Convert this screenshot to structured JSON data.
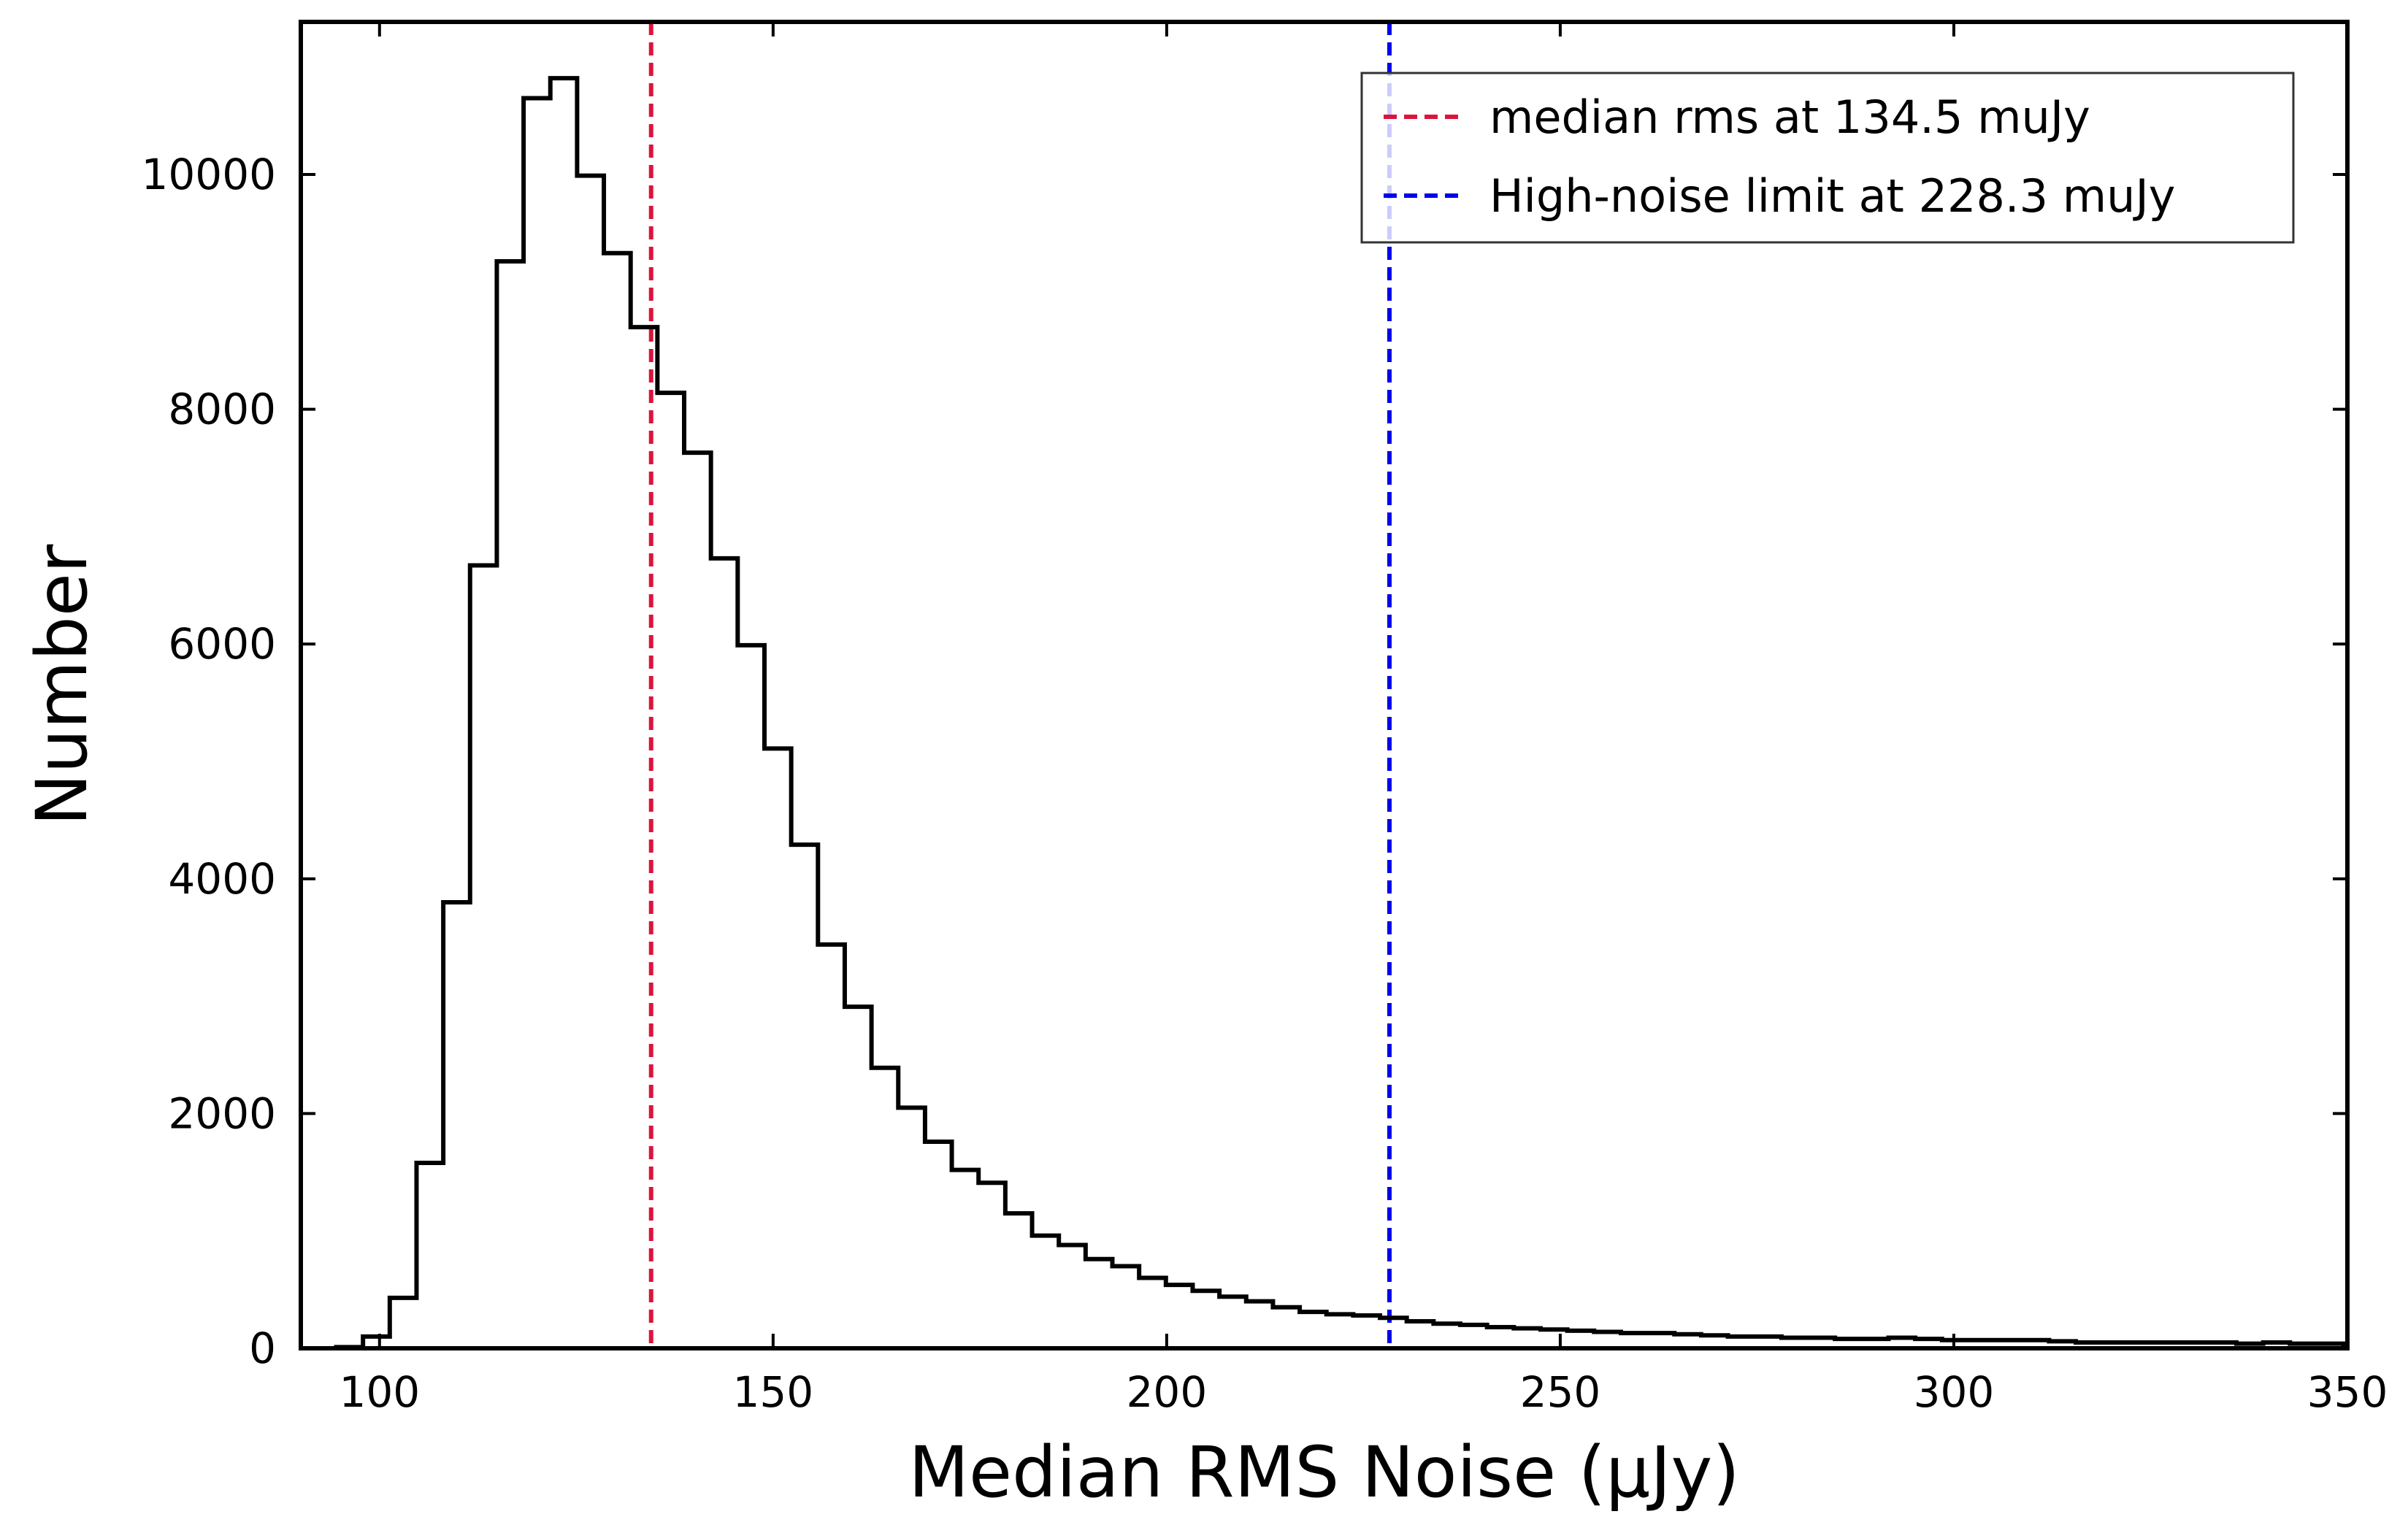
{
  "chart_data": {
    "type": "histogram",
    "xlabel": "Median RMS Noise (μJy)",
    "ylabel": "Number",
    "xlim": [
      90,
      350
    ],
    "ylim": [
      0,
      11300
    ],
    "xticks": [
      100,
      150,
      200,
      250,
      300,
      350
    ],
    "yticks": [
      0,
      2000,
      4000,
      6000,
      8000,
      10000
    ],
    "grid": false,
    "legend_position": "top-right",
    "bin_edges": [
      94.5,
      97.9,
      101.3,
      104.7,
      108.1,
      111.5,
      114.9,
      118.3,
      121.7,
      125.1,
      128.5,
      131.9,
      135.3,
      138.7,
      142.1,
      145.5,
      148.9,
      152.3,
      155.7,
      159.1,
      162.5,
      165.9,
      169.3,
      172.7,
      176.1,
      179.5,
      182.9,
      186.3,
      189.7,
      193.1,
      196.5,
      199.9,
      203.3,
      206.7,
      210.1,
      213.5,
      216.9,
      220.3,
      223.7,
      227.1,
      230.5,
      233.9,
      237.3,
      240.7,
      244.1,
      247.5,
      250.9,
      254.3,
      257.7,
      261.1,
      264.5,
      267.9,
      271.3,
      274.7,
      278.1,
      281.5,
      284.9,
      288.3,
      291.7,
      295.1,
      298.5,
      301.9,
      305.3,
      308.7,
      312.1,
      315.5,
      318.9,
      322.3,
      325.7,
      329.1,
      332.5,
      335.9,
      339.3,
      342.7,
      346.1,
      349.5
    ],
    "counts": [
      10,
      100,
      430,
      1580,
      3800,
      6670,
      9260,
      10650,
      10820,
      9990,
      9330,
      8700,
      8140,
      7630,
      6730,
      5990,
      5110,
      4290,
      3440,
      2910,
      2390,
      2050,
      1760,
      1520,
      1410,
      1150,
      960,
      880,
      760,
      700,
      600,
      540,
      490,
      440,
      400,
      350,
      310,
      290,
      280,
      260,
      230,
      210,
      200,
      180,
      170,
      160,
      150,
      140,
      130,
      130,
      120,
      110,
      100,
      100,
      90,
      90,
      80,
      80,
      90,
      80,
      70,
      70,
      70,
      70,
      60,
      50,
      50,
      50,
      50,
      50,
      50,
      40,
      50,
      40,
      40
    ],
    "vlines": [
      {
        "x": 134.5,
        "color": "#dc143c",
        "label": "median rms at 134.5 muJy"
      },
      {
        "x": 228.3,
        "color": "#0000ee",
        "label": "High-noise limit at 228.3 muJy"
      }
    ],
    "histogram_color": "#000000"
  }
}
